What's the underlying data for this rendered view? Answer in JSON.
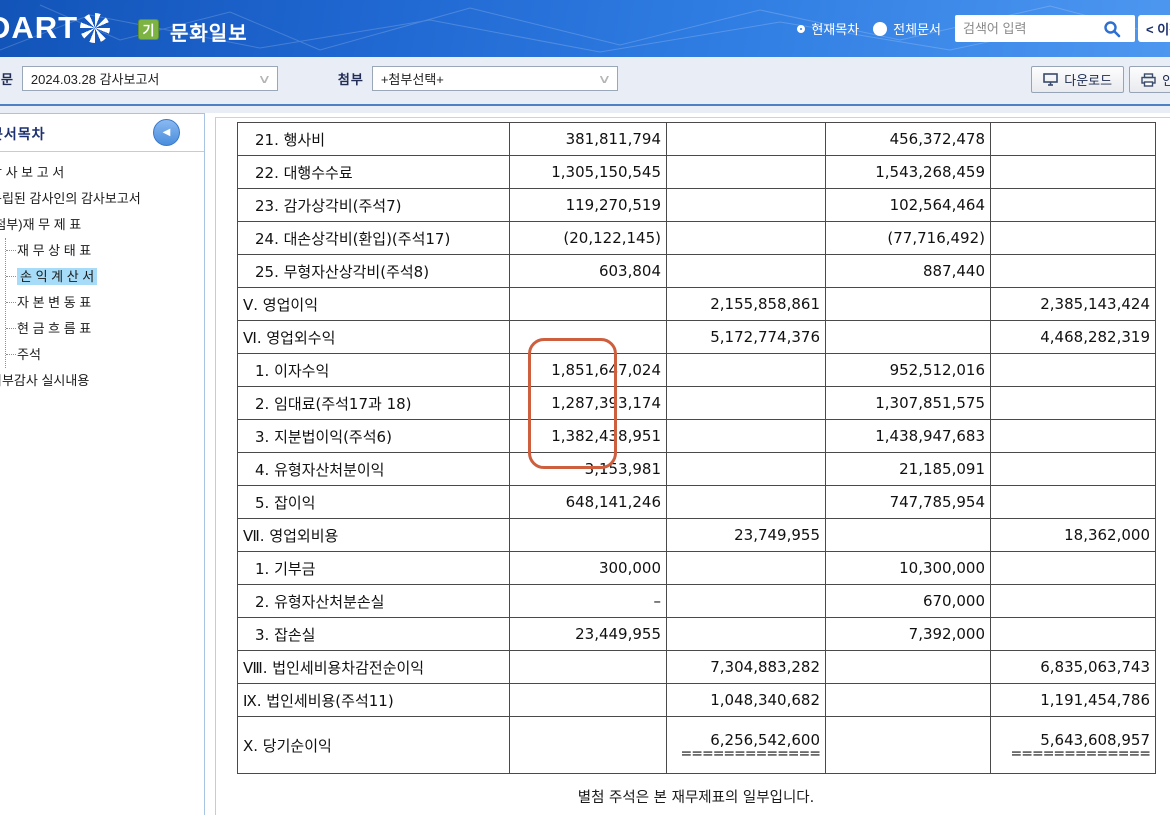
{
  "header": {
    "logo_text": "DART",
    "badge": "기",
    "company": "문화일보",
    "radios": [
      {
        "label": "현재목차",
        "selected": false
      },
      {
        "label": "전체문서",
        "selected": true
      }
    ],
    "search_placeholder": "검색어 입력",
    "prev_button": "< 이전"
  },
  "toolbar": {
    "doc_label": "본문",
    "doc_value": "2024.03.28  감사보고서",
    "attach_label": "첨부",
    "attach_value": "+첨부선택+",
    "download_label": "다운로드",
    "print_label": "인쇄"
  },
  "sidebar": {
    "title": "문서목차",
    "items": [
      {
        "label": "감 사 보 고 서",
        "type": "root",
        "selected": false
      },
      {
        "label": "독립된 감사인의 감사보고서",
        "type": "root",
        "selected": false
      },
      {
        "label": "(첨부)재 무 제 표",
        "type": "root",
        "selected": false
      },
      {
        "label": "재 무 상 태 표",
        "type": "child",
        "selected": false
      },
      {
        "label": "손 익 계 산 서",
        "type": "child",
        "selected": true
      },
      {
        "label": "자 본 변 동 표",
        "type": "child",
        "selected": false
      },
      {
        "label": "현 금 흐 름 표",
        "type": "child",
        "selected": false
      },
      {
        "label": "주석",
        "type": "child",
        "selected": false
      },
      {
        "label": "외부감사 실시내용",
        "type": "root",
        "selected": false
      }
    ]
  },
  "statement": {
    "rows": [
      {
        "label": "21. 행사비",
        "indent": 1,
        "c1": "381,811,794",
        "c2": "",
        "c3": "456,372,478",
        "c4": ""
      },
      {
        "label": "22. 대행수수료",
        "indent": 1,
        "c1": "1,305,150,545",
        "c2": "",
        "c3": "1,543,268,459",
        "c4": ""
      },
      {
        "label": "23. 감가상각비(주석7)",
        "indent": 1,
        "c1": "119,270,519",
        "c2": "",
        "c3": "102,564,464",
        "c4": ""
      },
      {
        "label": "24. 대손상각비(환입)(주석17)",
        "indent": 1,
        "c1": "(20,122,145)",
        "c2": "",
        "c3": "(77,716,492)",
        "c4": ""
      },
      {
        "label": "25. 무형자산상각비(주석8)",
        "indent": 1,
        "c1": "603,804",
        "c2": "",
        "c3": "887,440",
        "c4": ""
      },
      {
        "label": "Ⅴ. 영업이익",
        "indent": 0,
        "c1": "",
        "c2": "2,155,858,861",
        "c3": "",
        "c4": "2,385,143,424"
      },
      {
        "label": "Ⅵ. 영업외수익",
        "indent": 0,
        "c1": "",
        "c2": "5,172,774,376",
        "c3": "",
        "c4": "4,468,282,319"
      },
      {
        "label": "1. 이자수익",
        "indent": 1,
        "c1": "1,851,647,024",
        "c2": "",
        "c3": "952,512,016",
        "c4": ""
      },
      {
        "label": "2. 임대료(주석17과 18)",
        "indent": 1,
        "c1": "1,287,393,174",
        "c2": "",
        "c3": "1,307,851,575",
        "c4": ""
      },
      {
        "label": "3. 지분법이익(주석6)",
        "indent": 1,
        "c1": "1,382,438,951",
        "c2": "",
        "c3": "1,438,947,683",
        "c4": ""
      },
      {
        "label": "4. 유형자산처분이익",
        "indent": 1,
        "c1": "3,153,981",
        "c2": "",
        "c3": "21,185,091",
        "c4": ""
      },
      {
        "label": "5. 잡이익",
        "indent": 1,
        "c1": "648,141,246",
        "c2": "",
        "c3": "747,785,954",
        "c4": ""
      },
      {
        "label": "Ⅶ. 영업외비용",
        "indent": 0,
        "c1": "",
        "c2": "23,749,955",
        "c3": "",
        "c4": "18,362,000"
      },
      {
        "label": "1. 기부금",
        "indent": 1,
        "c1": "300,000",
        "c2": "",
        "c3": "10,300,000",
        "c4": ""
      },
      {
        "label": "2. 유형자산처분손실",
        "indent": 1,
        "c1": "–",
        "c2": "",
        "c3": "670,000",
        "c4": ""
      },
      {
        "label": "3. 잡손실",
        "indent": 1,
        "c1": "23,449,955",
        "c2": "",
        "c3": "7,392,000",
        "c4": ""
      },
      {
        "label": "Ⅷ. 법인세비용차감전순이익",
        "indent": 0,
        "c1": "",
        "c2": "7,304,883,282",
        "c3": "",
        "c4": "6,835,063,743"
      },
      {
        "label": "Ⅸ. 법인세비용(주석11)",
        "indent": 0,
        "c1": "",
        "c2": "1,048,340,682",
        "c3": "",
        "c4": "1,191,454,786"
      },
      {
        "label": "Ⅹ. 당기순이익",
        "indent": 0,
        "c1": "",
        "c2": "6,256,542,600",
        "c3": "",
        "c4": "5,643,608,957",
        "tall": true,
        "c2_sub": "=============",
        "c4_sub": "============="
      }
    ],
    "footer_note": "별첨 주석은 본 재무제표의 일부입니다."
  },
  "annotation": {
    "shape": "rounded-rect",
    "color": "#cd5f3f"
  }
}
